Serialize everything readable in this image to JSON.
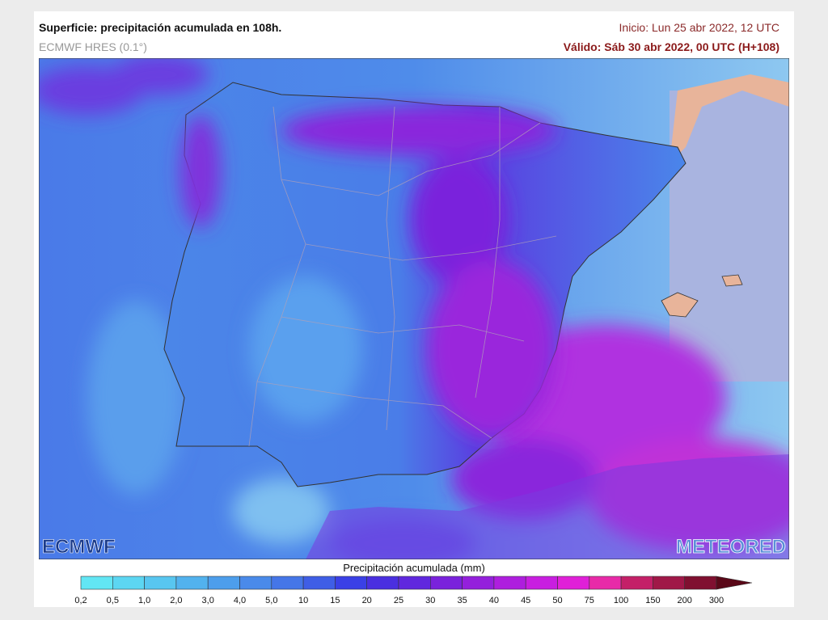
{
  "header": {
    "title": "Superficie: precipitación acumulada en 108h.",
    "model": "ECMWF HRES (0.1°)",
    "start": "Inicio: Lun 25 abr 2022, 12 UTC",
    "valid": "Válido: Sáb 30 abr 2022, 00 UTC (H+108)"
  },
  "logos": {
    "left": "ECMWF",
    "right": "METEORED"
  },
  "legend": {
    "title": "Precipitación acumulada (mm)",
    "labels": [
      "0,2",
      "0,5",
      "1,0",
      "2,0",
      "3,0",
      "4,0",
      "5,0",
      "10",
      "15",
      "20",
      "25",
      "30",
      "35",
      "40",
      "45",
      "50",
      "75",
      "100",
      "150",
      "200",
      "300"
    ],
    "colors": [
      "#62e6f4",
      "#5cd6f2",
      "#58c6f0",
      "#52b2ee",
      "#4d9eec",
      "#4a8aea",
      "#4576e8",
      "#3f5ee6",
      "#3a40e6",
      "#4a2fe0",
      "#6028de",
      "#7a22dc",
      "#9420dc",
      "#ae1ede",
      "#c81ee0",
      "#e020d8",
      "#e82aa8",
      "#c42068",
      "#a01848",
      "#801030"
    ],
    "arrow_color": "#5a0818"
  }
}
